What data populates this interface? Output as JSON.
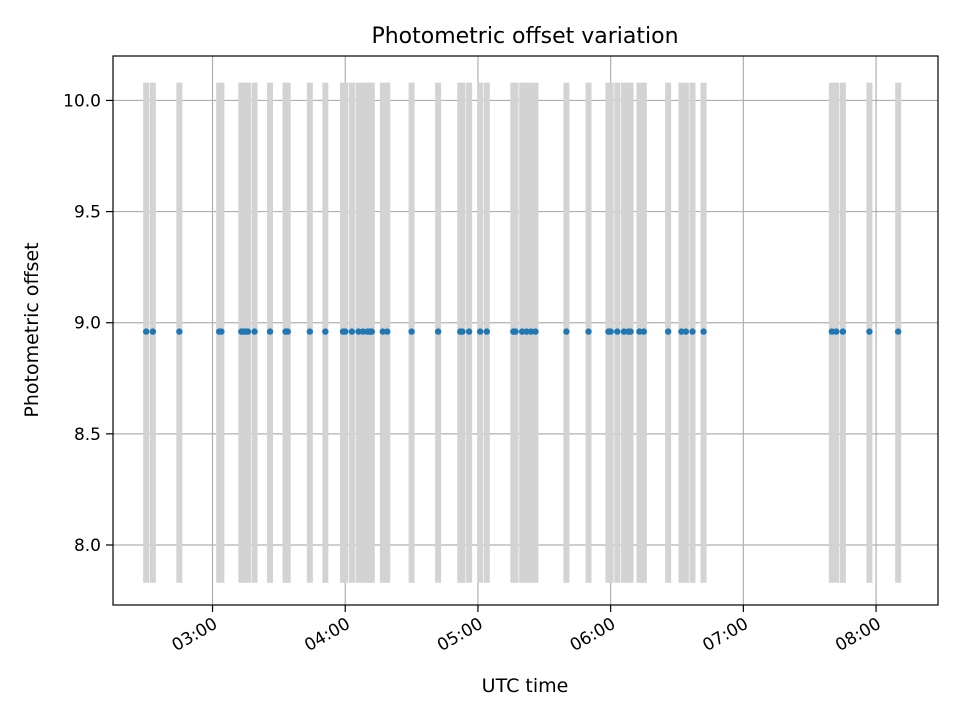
{
  "chart_data": {
    "type": "scatter",
    "title": "Photometric offset variation",
    "xlabel": "UTC time",
    "ylabel": "Photometric offset",
    "x_type": "time",
    "x_tick_labels": [
      "03:00",
      "04:00",
      "05:00",
      "06:00",
      "07:00",
      "08:00"
    ],
    "y_tick_labels": [
      "8.0",
      "8.5",
      "9.0",
      "9.5",
      "10.0"
    ],
    "xlim": [
      "02:15",
      "08:28"
    ],
    "ylim": [
      7.73,
      10.2
    ],
    "grid": true,
    "marker_color": "#1f77b4",
    "band_color": "#d3d3d3",
    "band_range": [
      7.83,
      10.08
    ],
    "x": [
      "02:30",
      "02:33",
      "02:45",
      "03:03",
      "03:04",
      "03:13",
      "03:14",
      "03:15",
      "03:16",
      "03:19",
      "03:26",
      "03:33",
      "03:34",
      "03:44",
      "03:51",
      "03:59",
      "04:00",
      "04:03",
      "04:06",
      "04:08",
      "04:10",
      "04:11",
      "04:12",
      "04:17",
      "04:19",
      "04:30",
      "04:42",
      "04:52",
      "04:53",
      "04:56",
      "05:01",
      "05:04",
      "05:16",
      "05:17",
      "05:20",
      "05:22",
      "05:24",
      "05:26",
      "05:40",
      "05:50",
      "05:59",
      "06:00",
      "06:03",
      "06:06",
      "06:08",
      "06:09",
      "06:13",
      "06:15",
      "06:26",
      "06:34",
      "06:37",
      "06:42",
      "06:32",
      "07:40",
      "07:42",
      "07:45",
      "07:57",
      "08:10"
    ],
    "y": [
      8.96,
      8.96,
      8.96,
      8.96,
      8.96,
      8.96,
      8.96,
      8.96,
      8.96,
      8.96,
      8.96,
      8.96,
      8.96,
      8.96,
      8.96,
      8.96,
      8.96,
      8.96,
      8.96,
      8.96,
      8.96,
      8.96,
      8.96,
      8.96,
      8.96,
      8.96,
      8.96,
      8.96,
      8.96,
      8.96,
      8.96,
      8.96,
      8.96,
      8.96,
      8.96,
      8.96,
      8.96,
      8.96,
      8.96,
      8.96,
      8.96,
      8.96,
      8.96,
      8.96,
      8.96,
      8.96,
      8.96,
      8.96,
      8.96,
      8.96,
      8.96,
      8.96,
      8.96,
      8.96,
      8.96,
      8.96,
      8.96,
      8.96
    ]
  }
}
